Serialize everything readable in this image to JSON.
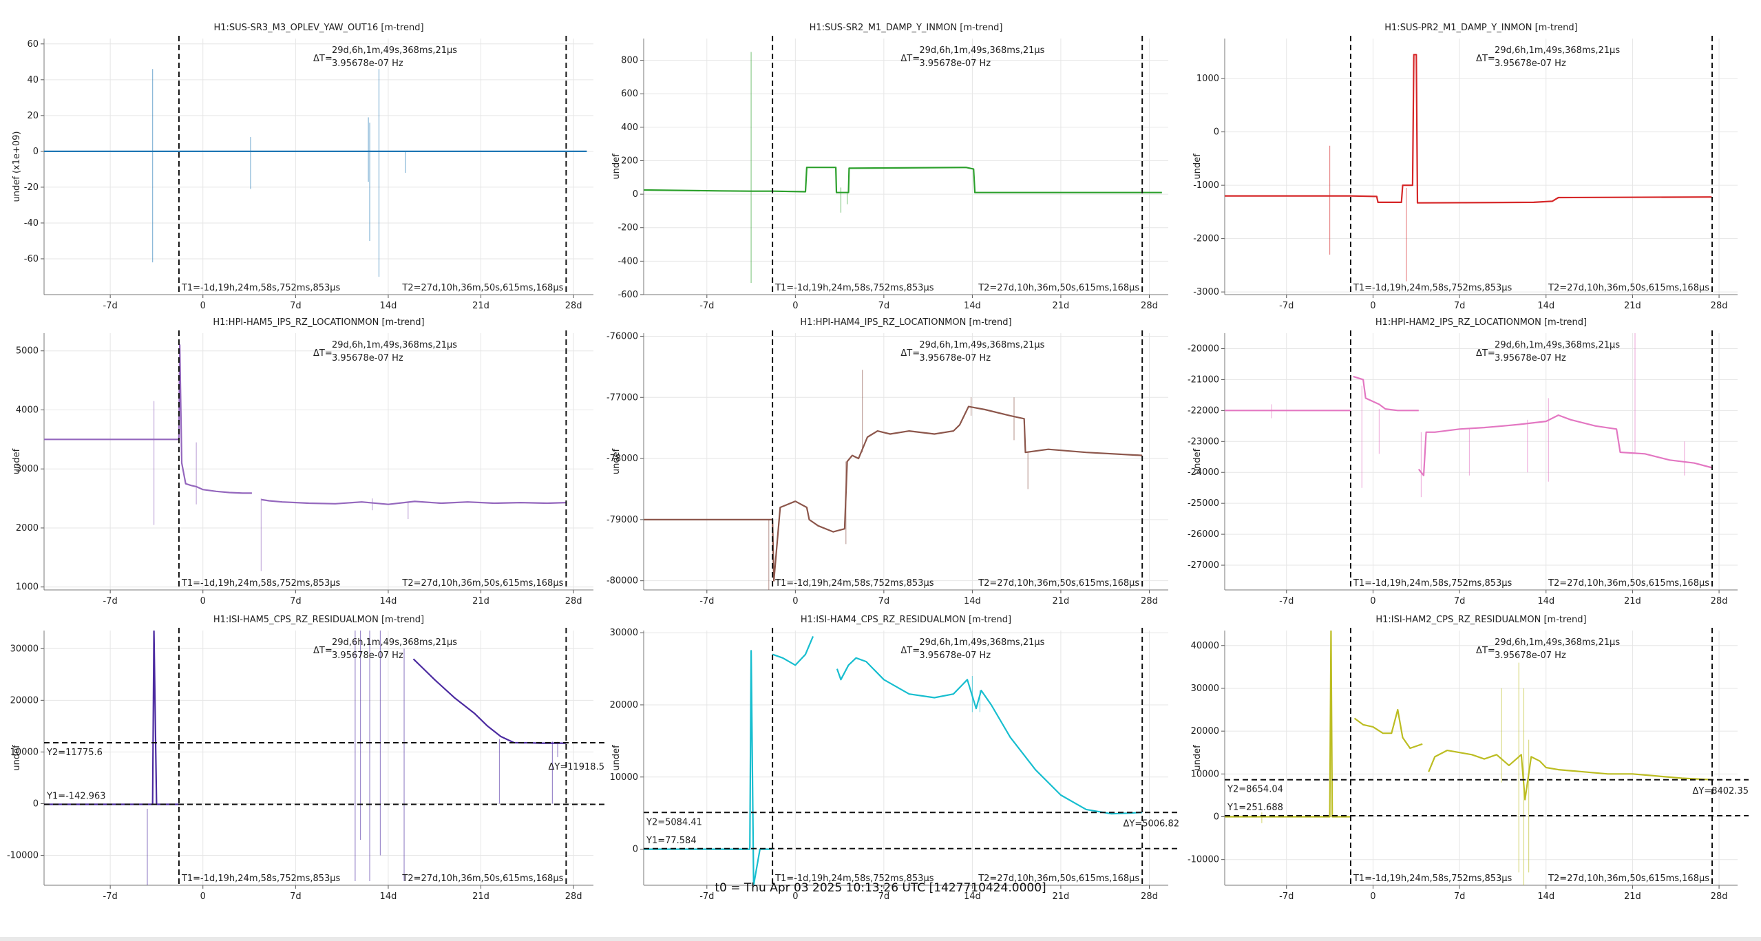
{
  "footer": "t0 = Thu Apr 03 2025 10:13:26 UTC [1427710424.0000]",
  "common": {
    "delta_t_label": "ΔT=",
    "delta_t_value": "29d,6h,1m,49s,368ms,21μs",
    "delta_f_value": "3.95678e-07 Hz",
    "t1_label": "T1=-1d,19h,24m,58s,752ms,853μs",
    "t2_label": "T2=27d,10h,36m,50s,615ms,168μs",
    "x_tick_labels": [
      "-7d",
      "0",
      "7d",
      "14d",
      "21d",
      "28d"
    ]
  },
  "chart_data": [
    {
      "type": "line",
      "title": "H1:SUS-SR3_M3_OPLEV_YAW_OUT16 [m-trend]",
      "ylabel": "undef (x1e+09)",
      "color": "#1f77b4",
      "xlim": [
        -12,
        29.5
      ],
      "ylim": [
        -80,
        63
      ],
      "x_ticks": [
        -7,
        0,
        7,
        14,
        21,
        28
      ],
      "y_ticks": [
        60,
        40,
        20,
        0,
        -20,
        -40,
        -60
      ],
      "y_tick_labels": [
        "60",
        "40",
        "20",
        "0",
        "-20",
        "-40",
        "-60"
      ],
      "t1": -1.81,
      "t2": 27.44,
      "series": [
        {
          "x": [
            -12,
            29
          ],
          "y": [
            0,
            0
          ]
        }
      ],
      "spikes": [
        [
          -3.8,
          -62,
          46
        ],
        [
          3.6,
          -21,
          8
        ],
        [
          12.5,
          -17,
          19
        ],
        [
          12.6,
          -50,
          16
        ],
        [
          13.3,
          -70,
          46
        ],
        [
          15.3,
          -12,
          0
        ]
      ]
    },
    {
      "type": "line",
      "title": "H1:SUS-SR2_M1_DAMP_Y_INMON [m-trend]",
      "ylabel": "undef",
      "color": "#2ca02c",
      "xlim": [
        -12,
        29.5
      ],
      "ylim": [
        -600,
        930
      ],
      "x_ticks": [
        -7,
        0,
        7,
        14,
        21,
        28
      ],
      "y_ticks": [
        800,
        600,
        400,
        200,
        0,
        -200,
        -400,
        -600
      ],
      "y_tick_labels": [
        "800",
        "600",
        "400",
        "200",
        "0",
        "-200",
        "-400",
        "-600"
      ],
      "t1": -1.81,
      "t2": 27.44,
      "series": [
        {
          "x": [
            -12,
            -6,
            -3.5,
            -1.81,
            0.8,
            0.9,
            3.2,
            3.25,
            4.2,
            4.25,
            13.5,
            14.1,
            14.2,
            29
          ],
          "y": [
            25,
            20,
            18,
            18,
            15,
            160,
            160,
            10,
            10,
            155,
            160,
            150,
            10,
            10
          ]
        }
      ],
      "spikes": [
        [
          -3.5,
          -530,
          850
        ],
        [
          3.6,
          -110,
          40
        ],
        [
          4.1,
          -60,
          10
        ]
      ]
    },
    {
      "type": "line",
      "title": "H1:SUS-PR2_M1_DAMP_Y_INMON [m-trend]",
      "ylabel": "undef",
      "color": "#d62728",
      "xlim": [
        -12,
        29.5
      ],
      "ylim": [
        -3050,
        1750
      ],
      "x_ticks": [
        -7,
        0,
        7,
        14,
        21,
        28
      ],
      "y_ticks": [
        1000,
        0,
        -1000,
        -2000,
        -3000
      ],
      "y_tick_labels": [
        "1000",
        "0",
        "-1000",
        "-2000",
        "-3000"
      ],
      "t1": -1.81,
      "t2": 27.44,
      "series": [
        {
          "x": [
            -12,
            -1.81,
            0.3,
            0.4,
            2.3,
            2.4,
            3.2,
            3.3,
            3.5,
            3.6,
            13,
            14.5,
            15,
            27.4
          ],
          "y": [
            -1200,
            -1200,
            -1210,
            -1320,
            -1320,
            -1000,
            -1000,
            1450,
            1450,
            -1330,
            -1320,
            -1300,
            -1230,
            -1220
          ]
        }
      ],
      "spikes": [
        [
          -3.5,
          -2300,
          -260
        ],
        [
          2.7,
          -2800,
          -1050
        ]
      ]
    },
    {
      "type": "line",
      "title": "H1:HPI-HAM5_IPS_RZ_LOCATIONMON [m-trend]",
      "ylabel": "undef",
      "color": "#9467bd",
      "xlim": [
        -12,
        29.5
      ],
      "ylim": [
        950,
        5300
      ],
      "x_ticks": [
        -7,
        0,
        7,
        14,
        21,
        28
      ],
      "y_ticks": [
        5000,
        4000,
        3000,
        2000,
        1000
      ],
      "y_tick_labels": [
        "5000",
        "4000",
        "3000",
        "2000",
        "1000"
      ],
      "t1": -1.81,
      "t2": 27.44,
      "series": [
        {
          "x": [
            -12,
            -1.81,
            -1.75,
            -1.6,
            -1.3,
            -0.9,
            -0.5,
            0.0,
            1,
            2,
            3,
            3.7
          ],
          "y": [
            3500,
            3500,
            5100,
            3100,
            2750,
            2720,
            2700,
            2650,
            2620,
            2600,
            2590,
            2590
          ]
        },
        {
          "x": [
            4.4,
            5,
            6,
            8,
            10,
            12,
            14,
            16,
            18,
            20,
            22,
            24,
            26,
            27.44
          ],
          "y": [
            2480,
            2460,
            2440,
            2420,
            2410,
            2440,
            2400,
            2450,
            2420,
            2440,
            2420,
            2430,
            2420,
            2430
          ]
        }
      ],
      "spikes": [
        [
          -3.7,
          2050,
          4150
        ],
        [
          -0.5,
          2400,
          3450
        ],
        [
          4.4,
          1270,
          2500
        ],
        [
          12.8,
          2300,
          2500
        ],
        [
          15.5,
          2150,
          2450
        ]
      ]
    },
    {
      "type": "line",
      "title": "H1:HPI-HAM4_IPS_RZ_LOCATIONMON [m-trend]",
      "ylabel": "undef",
      "color": "#8c564b",
      "xlim": [
        -12,
        29.5
      ],
      "ylim": [
        -80150,
        -75950
      ],
      "x_ticks": [
        -7,
        0,
        7,
        14,
        21,
        28
      ],
      "y_ticks": [
        -76000,
        -77000,
        -78000,
        -79000,
        -80000
      ],
      "y_tick_labels": [
        "-76000",
        "-77000",
        "-78000",
        "-79000",
        "-80000"
      ],
      "t1": -1.81,
      "t2": 27.44,
      "series": [
        {
          "x": [
            -12,
            -1.81,
            -1.7,
            -1.2,
            0,
            0.9,
            1.1,
            1.8,
            3,
            3.9,
            4.1,
            4.5,
            5,
            5.7,
            6.5,
            7.5,
            9,
            11,
            12.5,
            13,
            13.7,
            15,
            17,
            18.1,
            18.2,
            20,
            23,
            27.44
          ],
          "y": [
            -79000,
            -79000,
            -80000,
            -78800,
            -78700,
            -78800,
            -79000,
            -79100,
            -79200,
            -79150,
            -78050,
            -77950,
            -78000,
            -77650,
            -77550,
            -77600,
            -77550,
            -77600,
            -77550,
            -77450,
            -77150,
            -77200,
            -77300,
            -77350,
            -77900,
            -77850,
            -77900,
            -77950
          ]
        }
      ],
      "spikes": [
        [
          -2.1,
          -80150,
          -79000
        ],
        [
          4.0,
          -79400,
          -78050
        ],
        [
          5.3,
          -77900,
          -76550
        ],
        [
          13.9,
          -77300,
          -77000
        ],
        [
          17.3,
          -77700,
          -77000
        ],
        [
          18.4,
          -78500,
          -77900
        ]
      ]
    },
    {
      "type": "line",
      "title": "H1:HPI-HAM2_IPS_RZ_LOCATIONMON [m-trend]",
      "ylabel": "undef",
      "color": "#e377c2",
      "xlim": [
        -12,
        29.5
      ],
      "ylim": [
        -27800,
        -19500
      ],
      "x_ticks": [
        -7,
        0,
        7,
        14,
        21,
        28
      ],
      "y_ticks": [
        -20000,
        -21000,
        -22000,
        -23000,
        -24000,
        -25000,
        -26000,
        -27000
      ],
      "y_tick_labels": [
        "-20000",
        "-21000",
        "-22000",
        "-23000",
        "-24000",
        "-25000",
        "-26000",
        "-27000"
      ],
      "t1": -1.81,
      "t2": 27.44,
      "series": [
        {
          "x": [
            -12,
            -1.81
          ],
          "y": [
            -22000,
            -22000
          ]
        },
        {
          "x": [
            -1.6,
            -0.8,
            -0.6,
            0.5,
            1,
            2,
            3.7
          ],
          "y": [
            -20900,
            -21000,
            -21600,
            -21800,
            -21950,
            -22000,
            -22000
          ]
        },
        {
          "x": [
            3.7,
            4.1,
            4.3,
            5,
            7,
            9,
            10.5,
            11.8,
            14,
            15,
            16,
            18,
            19.7,
            20,
            22,
            24,
            26,
            27.44
          ],
          "y": [
            -23900,
            -24100,
            -22700,
            -22700,
            -22600,
            -22550,
            -22500,
            -22450,
            -22350,
            -22150,
            -22300,
            -22500,
            -22600,
            -23350,
            -23400,
            -23600,
            -23700,
            -23850
          ]
        }
      ],
      "spikes": [
        [
          -8.2,
          -22250,
          -21800
        ],
        [
          -0.9,
          -24500,
          -21200
        ],
        [
          0.5,
          -23400,
          -21950
        ],
        [
          3.9,
          -24800,
          -22700
        ],
        [
          7.8,
          -24100,
          -22600
        ],
        [
          12.5,
          -24000,
          -22300
        ],
        [
          14.2,
          -24300,
          -21600
        ],
        [
          21.2,
          -23400,
          -19400
        ],
        [
          25.2,
          -24100,
          -23000
        ]
      ]
    },
    {
      "type": "line",
      "title": "H1:ISI-HAM5_CPS_RZ_RESIDUALMON [m-trend]",
      "ylabel": "undef",
      "color": "#4b2aa0",
      "xlim": [
        -12,
        29.5
      ],
      "ylim": [
        -15800,
        33500
      ],
      "x_ticks": [
        -7,
        0,
        7,
        14,
        21,
        28
      ],
      "y_ticks": [
        30000,
        20000,
        10000,
        0,
        -10000
      ],
      "y_tick_labels": [
        "30000",
        "20000",
        "10000",
        "0",
        "-10000"
      ],
      "t1": -1.81,
      "t2": 27.44,
      "y1": -142.963,
      "y2": 11775.6,
      "y1_label": "Y1=-142.963",
      "y2_label": "Y2=11775.6",
      "dy_label": "ΔY=11918.5",
      "series": [
        {
          "x": [
            -12,
            -3.8,
            -3.7,
            -3.5,
            -1.81
          ],
          "y": [
            -142,
            -142,
            33500,
            -142,
            -142
          ]
        },
        {
          "x": [
            15.9,
            16.5,
            17.5,
            19,
            20.5,
            21.5,
            22.5,
            23.5,
            24.8,
            25.5,
            26.5,
            27.44
          ],
          "y": [
            28000,
            26500,
            24000,
            20500,
            17500,
            15000,
            13000,
            11800,
            11750,
            11700,
            11700,
            11700
          ]
        }
      ],
      "spikes": [
        [
          -4.2,
          -16000,
          -1000
        ],
        [
          11.5,
          -15000,
          33500
        ],
        [
          11.9,
          -7000,
          33500
        ],
        [
          12.6,
          -15000,
          33500
        ],
        [
          13.4,
          -10000,
          33500
        ],
        [
          15.2,
          -15000,
          30000
        ],
        [
          22.4,
          0,
          12500
        ],
        [
          26.4,
          0,
          12000
        ],
        [
          26.8,
          9000,
          12000
        ]
      ]
    },
    {
      "type": "line",
      "title": "H1:ISI-HAM4_CPS_RZ_RESIDUALMON [m-trend]",
      "ylabel": "undef",
      "color": "#17becf",
      "xlim": [
        -12,
        29.5
      ],
      "ylim": [
        -5000,
        30300
      ],
      "x_ticks": [
        -7,
        0,
        7,
        14,
        21,
        28
      ],
      "y_ticks": [
        30000,
        20000,
        10000,
        0
      ],
      "y_tick_labels": [
        "30000",
        "20000",
        "10000",
        "0"
      ],
      "t1": -1.81,
      "t2": 27.44,
      "y1": 77.584,
      "y2": 5084.41,
      "y1_label": "Y1=77.584",
      "y2_label": "Y2=5084.41",
      "dy_label": "ΔY=5006.82",
      "series": [
        {
          "x": [
            -12,
            -3.6,
            -3.5,
            -3.3,
            -2.8,
            -1.81
          ],
          "y": [
            0,
            0,
            27500,
            -5000,
            0,
            0
          ]
        },
        {
          "x": [
            -1.81,
            -1,
            0,
            0.8,
            1.4
          ],
          "y": [
            27000,
            26500,
            25500,
            27000,
            29500
          ]
        },
        {
          "x": [
            3.3,
            3.6,
            4.2,
            4.8,
            5.6,
            7,
            9,
            11,
            12.5,
            13.6,
            14.3,
            14.7,
            15.5,
            17,
            19,
            21,
            23,
            25,
            26.5,
            27.44
          ],
          "y": [
            25000,
            23500,
            25500,
            26500,
            26000,
            23500,
            21500,
            21000,
            21500,
            23500,
            19500,
            22000,
            20000,
            15500,
            11000,
            7500,
            5500,
            4900,
            5000,
            5100
          ]
        }
      ],
      "spikes": [
        [
          14.0,
          19000,
          24000
        ],
        [
          14.6,
          19000,
          22000
        ]
      ]
    },
    {
      "type": "line",
      "title": "H1:ISI-HAM2_CPS_RZ_RESIDUALMON [m-trend]",
      "ylabel": "undef",
      "color": "#bcbd22",
      "xlim": [
        -12,
        29.5
      ],
      "ylim": [
        -16000,
        43500
      ],
      "x_ticks": [
        -7,
        0,
        7,
        14,
        21,
        28
      ],
      "y_ticks": [
        40000,
        30000,
        20000,
        10000,
        0,
        -10000
      ],
      "y_tick_labels": [
        "40000",
        "30000",
        "20000",
        "10000",
        "0",
        "-10000"
      ],
      "t1": -1.81,
      "t2": 27.44,
      "y1": 251.688,
      "y2": 8654.04,
      "y1_label": "Y1=251.688",
      "y2_label": "Y2=8654.04",
      "dy_label": "ΔY=8402.35",
      "series": [
        {
          "x": [
            -12,
            -3.5,
            -3.4,
            -3.3,
            -1.81
          ],
          "y": [
            0,
            0,
            43500,
            0,
            0
          ]
        },
        {
          "x": [
            -1.5,
            -0.8,
            0,
            0.8,
            1.5,
            2,
            2.4,
            3,
            4
          ],
          "y": [
            23000,
            21500,
            21000,
            19500,
            19500,
            25000,
            18500,
            16000,
            17000
          ]
        },
        {
          "x": [
            4.5,
            5,
            6,
            7,
            8,
            9,
            10,
            11,
            12,
            12.3,
            12.8,
            13.5,
            14,
            15,
            17,
            19,
            21,
            23,
            25,
            27.44
          ],
          "y": [
            10500,
            14000,
            15500,
            15000,
            14500,
            13500,
            14500,
            12000,
            14500,
            4000,
            14000,
            13000,
            11500,
            11000,
            10500,
            10000,
            10000,
            9500,
            9000,
            8650
          ]
        }
      ],
      "spikes": [
        [
          -9,
          -1500,
          1000
        ],
        [
          10.4,
          8000,
          30000
        ],
        [
          11.8,
          -13000,
          36000
        ],
        [
          12.2,
          -16000,
          30000
        ],
        [
          12.6,
          -13000,
          18000
        ]
      ]
    }
  ]
}
